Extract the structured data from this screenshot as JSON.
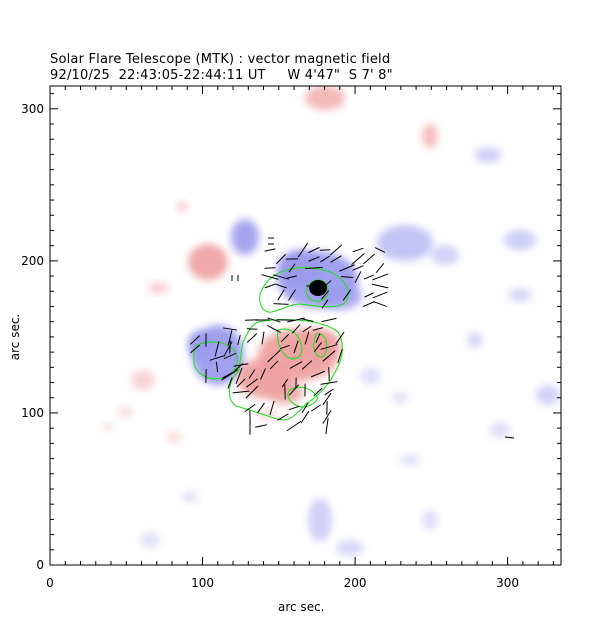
{
  "header": {
    "title": "Solar Flare Telescope (MTK) : vector magnetic field",
    "subtitle": "92/10/25  22:43:05-22:44:11 UT     W 4'47\"  S 7' 8\""
  },
  "axes": {
    "xlabel": "arc sec.",
    "ylabel": "arc sec.",
    "xlim": [
      0,
      335
    ],
    "ylim": [
      0,
      315
    ],
    "x_ticks": [
      0,
      100,
      200,
      300
    ],
    "y_ticks": [
      0,
      100,
      200,
      300
    ]
  },
  "colors": {
    "positive": "#e98080",
    "negative": "#7a7ae8",
    "contour": "#22dd22",
    "vectors": "#000000",
    "umbra": "#000000"
  }
}
